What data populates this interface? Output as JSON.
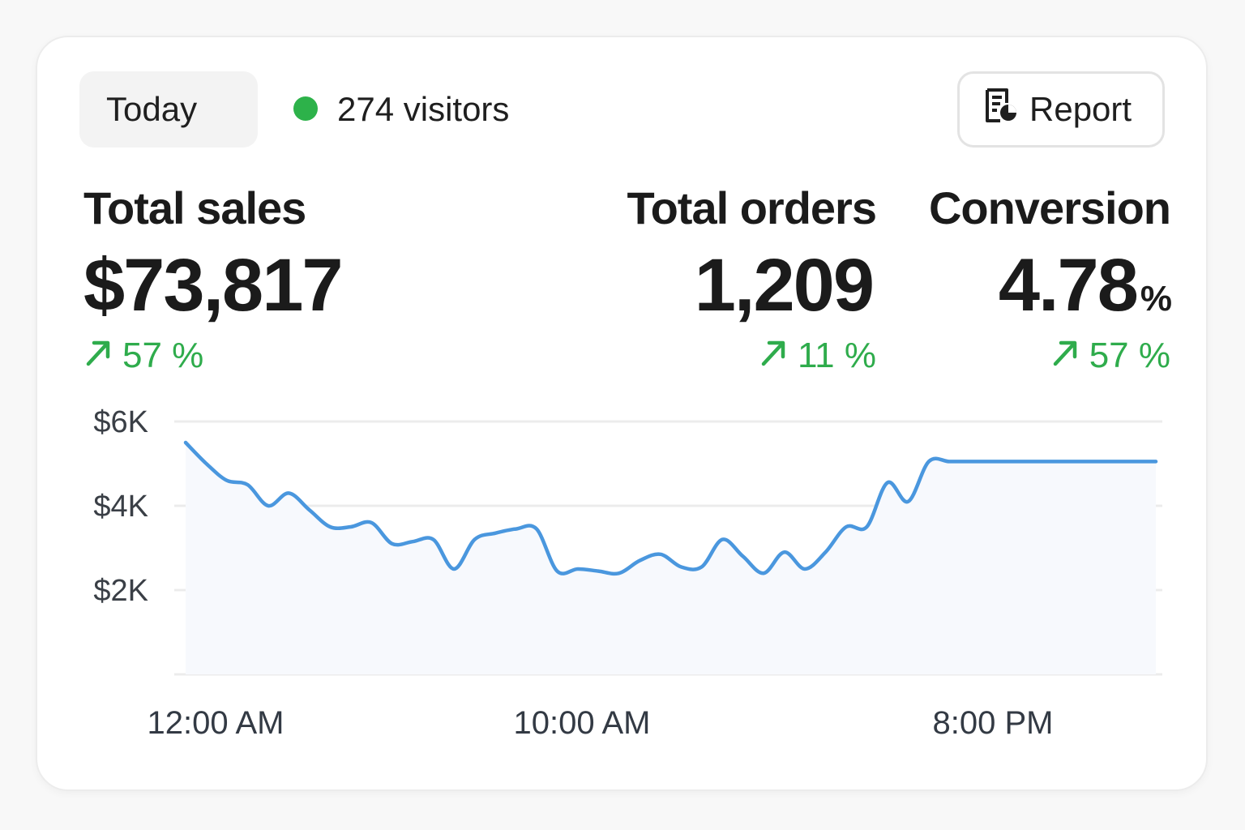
{
  "header": {
    "date_range": "Today",
    "visitors_label": "274 visitors",
    "live_color": "#2db24a",
    "report_label": "Report",
    "report_icon": "report-document-icon"
  },
  "stats": [
    {
      "label": "Total sales",
      "value": "$73,817",
      "unit": "",
      "delta": "57 %",
      "trend_icon": "arrow-up-right-icon"
    },
    {
      "label": "Total orders",
      "value": "1,209",
      "unit": "",
      "delta": "11 %",
      "trend_icon": "arrow-up-right-icon"
    },
    {
      "label": "Conversion",
      "value": "4.78",
      "unit": "%",
      "delta": "57 %",
      "trend_icon": "arrow-up-right-icon"
    }
  ],
  "colors": {
    "positive": "#2fac4c",
    "line": "#4a97de",
    "area": "#f7f9fd",
    "grid": "#ececec"
  },
  "chart_data": {
    "type": "line",
    "title": "",
    "xlabel": "",
    "ylabel": "",
    "x_ticks": [
      "12:00 AM",
      "10:00 AM",
      "8:00 PM"
    ],
    "y_ticks": [
      "$6K",
      "$4K",
      "$2K"
    ],
    "y_tick_values": [
      6000,
      4000,
      2000
    ],
    "ylim": [
      0,
      6000
    ],
    "xlim": [
      0,
      23.5
    ],
    "series": [
      {
        "name": "Sales",
        "x": [
          0,
          0.5,
          1,
          1.5,
          2,
          2.5,
          3,
          3.5,
          4,
          4.5,
          5,
          5.5,
          6,
          6.5,
          7,
          7.5,
          8,
          8.5,
          9,
          9.5,
          10,
          10.5,
          11,
          11.5,
          12,
          12.5,
          13,
          13.5,
          14,
          14.5,
          15,
          15.5,
          16,
          16.5,
          17,
          17.5,
          18,
          18.5,
          19,
          19.5,
          20,
          20.5,
          21,
          21.5,
          22,
          22.5,
          23,
          23.5
        ],
        "values": [
          5500,
          5000,
          4600,
          4500,
          4000,
          4300,
          3900,
          3500,
          3500,
          3600,
          3100,
          3150,
          3200,
          2500,
          3200,
          3350,
          3450,
          3450,
          2450,
          2500,
          2450,
          2400,
          2700,
          2850,
          2550,
          2550,
          3200,
          2800,
          2400,
          2900,
          2500,
          2900,
          3500,
          3500,
          4550,
          4100,
          5050,
          5050,
          5050,
          5050,
          5050,
          5050,
          5050,
          5050,
          5050,
          5050,
          5050,
          5050
        ]
      }
    ]
  }
}
